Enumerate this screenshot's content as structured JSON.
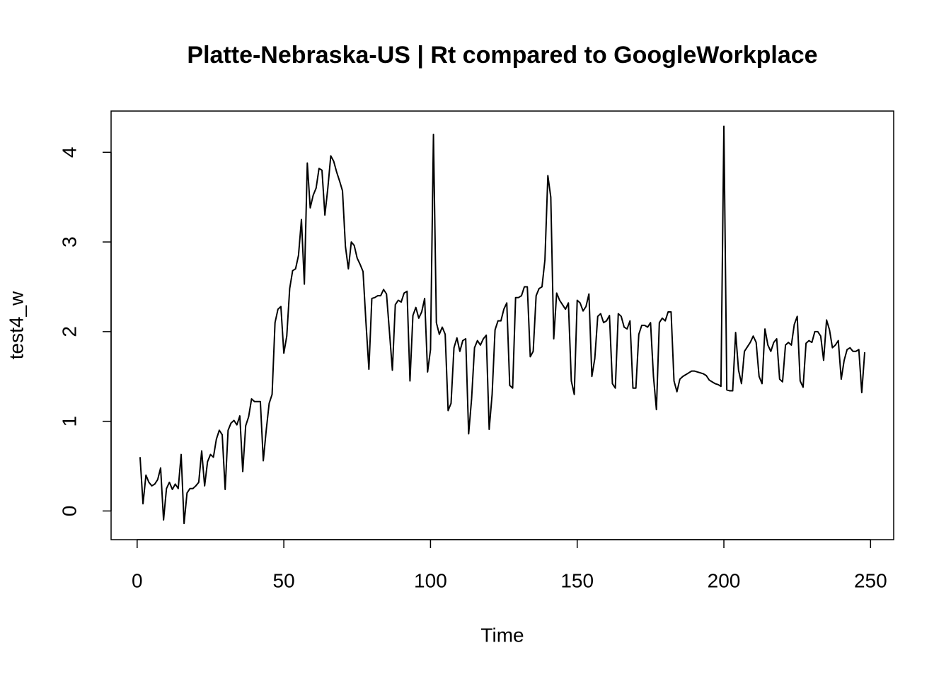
{
  "chart_data": {
    "type": "line",
    "title": "Platte-Nebraska-US | Rt compared to GoogleWorkplace",
    "x_label": "Time",
    "y_label": "test4_w",
    "color": "#000000",
    "x": [
      1,
      2,
      3,
      4,
      5,
      6,
      7,
      8,
      9,
      10,
      11,
      12,
      13,
      14,
      15,
      16,
      17,
      18,
      19,
      20,
      21,
      22,
      23,
      24,
      25,
      26,
      27,
      28,
      29,
      30,
      31,
      32,
      33,
      34,
      35,
      36,
      37,
      38,
      39,
      40,
      41,
      42,
      43,
      44,
      45,
      46,
      47,
      48,
      49,
      50,
      51,
      52,
      53,
      54,
      55,
      56,
      57,
      58,
      59,
      60,
      61,
      62,
      63,
      64,
      65,
      66,
      67,
      68,
      69,
      70,
      71,
      72,
      73,
      74,
      75,
      76,
      77,
      78,
      79,
      80,
      81,
      82,
      83,
      84,
      85,
      86,
      87,
      88,
      89,
      90,
      91,
      92,
      93,
      94,
      95,
      96,
      97,
      98,
      99,
      100,
      101,
      102,
      103,
      104,
      105,
      106,
      107,
      108,
      109,
      110,
      111,
      112,
      113,
      114,
      115,
      116,
      117,
      118,
      119,
      120,
      121,
      122,
      123,
      124,
      125,
      126,
      127,
      128,
      129,
      130,
      131,
      132,
      133,
      134,
      135,
      136,
      137,
      138,
      139,
      140,
      141,
      142,
      143,
      144,
      145,
      146,
      147,
      148,
      149,
      150,
      151,
      152,
      153,
      154,
      155,
      156,
      157,
      158,
      159,
      160,
      161,
      162,
      163,
      164,
      165,
      166,
      167,
      168,
      169,
      170,
      171,
      172,
      173,
      174,
      175,
      176,
      177,
      178,
      179,
      180,
      181,
      182,
      183,
      184,
      185,
      186,
      187,
      188,
      189,
      190,
      191,
      192,
      193,
      194,
      195,
      196,
      197,
      198,
      199,
      200,
      201,
      202,
      203,
      204,
      205,
      206,
      207,
      208,
      209,
      210,
      211,
      212,
      213,
      214,
      215,
      216,
      217,
      218,
      219,
      220,
      221,
      222,
      223,
      224,
      225,
      226,
      227,
      228,
      229,
      230,
      231,
      232,
      233,
      234,
      235,
      236,
      237,
      238,
      239,
      240,
      241,
      242,
      243,
      244,
      245,
      246,
      247,
      248
    ],
    "values": [
      0.6,
      0.08,
      0.4,
      0.32,
      0.28,
      0.3,
      0.35,
      0.48,
      -0.1,
      0.25,
      0.32,
      0.24,
      0.3,
      0.25,
      0.63,
      -0.14,
      0.2,
      0.25,
      0.25,
      0.28,
      0.32,
      0.67,
      0.28,
      0.55,
      0.63,
      0.6,
      0.8,
      0.9,
      0.85,
      0.24,
      0.9,
      0.98,
      1.01,
      0.96,
      1.06,
      0.44,
      0.95,
      1.05,
      1.25,
      1.22,
      1.22,
      1.22,
      0.56,
      0.9,
      1.2,
      1.3,
      2.1,
      2.25,
      2.28,
      1.76,
      1.95,
      2.48,
      2.68,
      2.7,
      2.85,
      3.25,
      2.53,
      3.88,
      3.38,
      3.52,
      3.6,
      3.82,
      3.8,
      3.3,
      3.6,
      3.96,
      3.9,
      3.78,
      3.68,
      3.57,
      2.95,
      2.7,
      3.0,
      2.96,
      2.82,
      2.75,
      2.67,
      2.1,
      1.58,
      2.37,
      2.38,
      2.4,
      2.4,
      2.47,
      2.42,
      2.0,
      1.57,
      2.3,
      2.35,
      2.33,
      2.43,
      2.45,
      1.45,
      2.18,
      2.27,
      2.15,
      2.22,
      2.37,
      1.55,
      1.8,
      4.2,
      2.1,
      1.97,
      2.05,
      1.97,
      1.12,
      1.2,
      1.82,
      1.93,
      1.78,
      1.9,
      1.92,
      0.86,
      1.25,
      1.82,
      1.9,
      1.85,
      1.92,
      1.96,
      0.91,
      1.3,
      2.02,
      2.12,
      2.12,
      2.25,
      2.32,
      1.4,
      1.37,
      2.38,
      2.38,
      2.4,
      2.5,
      2.5,
      1.72,
      1.78,
      2.4,
      2.48,
      2.5,
      2.8,
      3.74,
      3.5,
      1.92,
      2.43,
      2.35,
      2.3,
      2.25,
      2.32,
      1.45,
      1.3,
      2.35,
      2.32,
      2.23,
      2.28,
      2.42,
      1.5,
      1.7,
      2.17,
      2.2,
      2.1,
      2.12,
      2.18,
      1.42,
      1.37,
      2.2,
      2.17,
      2.05,
      2.03,
      2.12,
      1.37,
      1.37,
      1.97,
      2.07,
      2.07,
      2.05,
      2.1,
      1.5,
      1.13,
      2.1,
      2.15,
      2.12,
      2.22,
      2.22,
      1.45,
      1.33,
      1.47,
      1.5,
      1.52,
      1.54,
      1.56,
      1.56,
      1.55,
      1.54,
      1.53,
      1.51,
      1.46,
      1.44,
      1.42,
      1.41,
      1.39,
      4.29,
      1.35,
      1.34,
      1.34,
      1.99,
      1.57,
      1.42,
      1.78,
      1.83,
      1.88,
      1.95,
      1.88,
      1.5,
      1.42,
      2.03,
      1.85,
      1.78,
      1.88,
      1.92,
      1.47,
      1.44,
      1.85,
      1.88,
      1.85,
      2.08,
      2.17,
      1.45,
      1.38,
      1.87,
      1.9,
      1.88,
      2.0,
      2.0,
      1.95,
      1.68,
      2.13,
      2.02,
      1.82,
      1.85,
      1.9,
      1.47,
      1.68,
      1.8,
      1.82,
      1.78,
      1.78,
      1.8,
      1.32,
      1.77
    ],
    "xlim": [
      -8.88,
      257.88
    ],
    "xticks": [
      0,
      50,
      100,
      150,
      200,
      250
    ],
    "ylim": [
      -0.32,
      4.46
    ],
    "yticks": [
      0,
      1,
      2,
      3,
      4
    ]
  }
}
